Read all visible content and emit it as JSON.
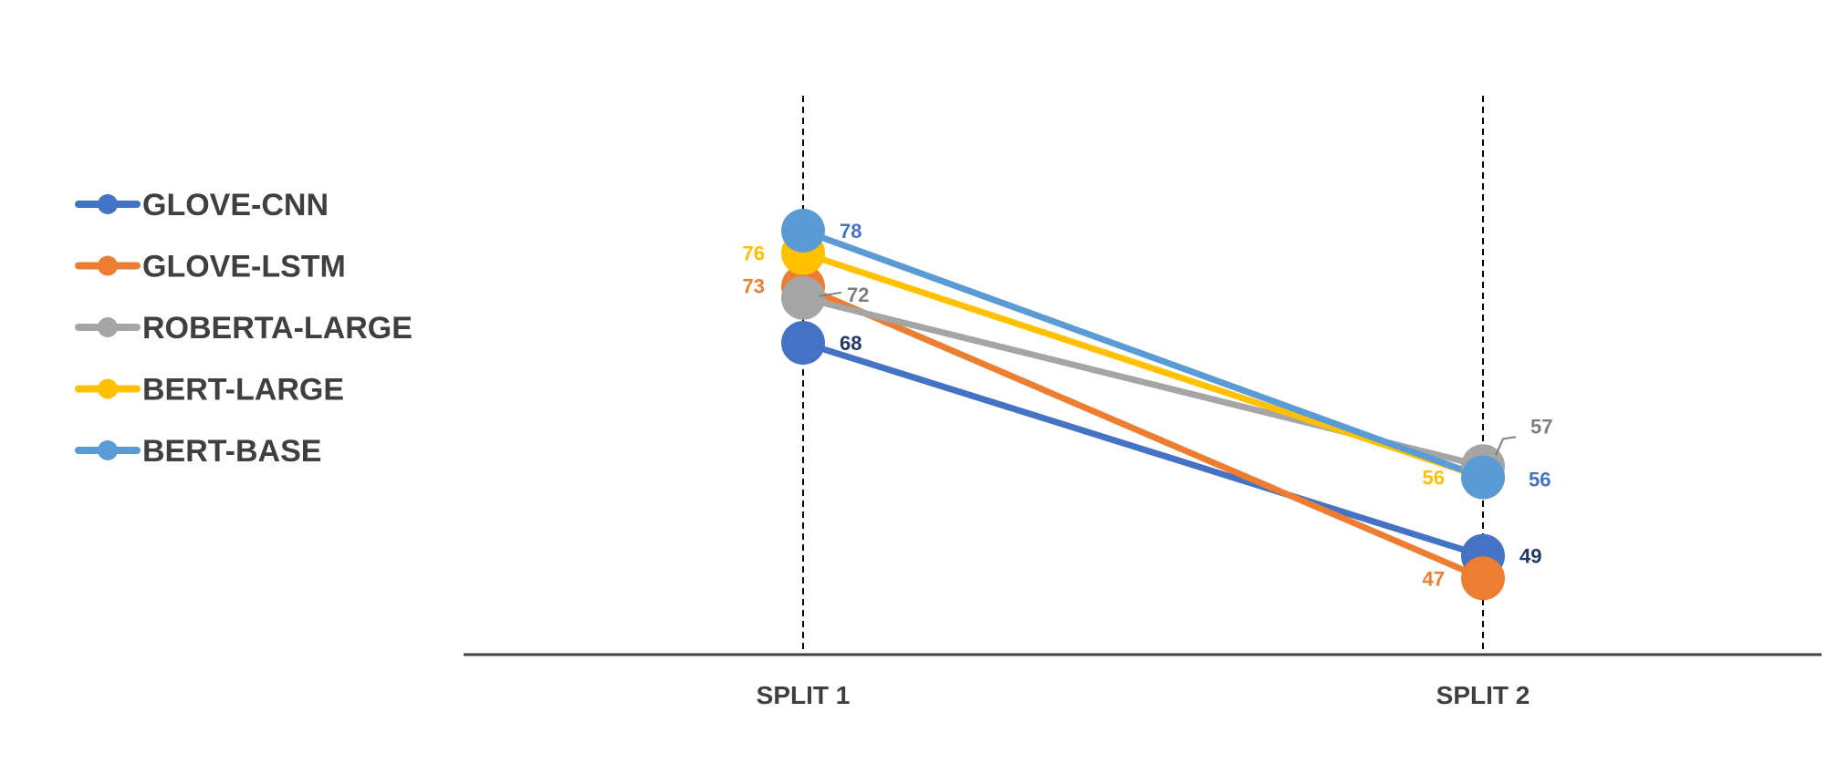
{
  "chart_data": {
    "type": "line",
    "title": "",
    "xlabel": "",
    "ylabel": "",
    "categories": [
      "SPLIT 1",
      "SPLIT 2"
    ],
    "legend_position": "left",
    "grid": false,
    "series": [
      {
        "name": "GLOVE-CNN",
        "values": [
          68,
          49
        ],
        "color": "#4472C4",
        "label_color": "#1F3864"
      },
      {
        "name": "GLOVE-LSTM",
        "values": [
          73,
          47
        ],
        "color": "#ED7D31",
        "label_color": "#ED7D31"
      },
      {
        "name": "ROBERTA-LARGE",
        "values": [
          72,
          57
        ],
        "color": "#A5A5A5",
        "label_color": "#7F7F7F"
      },
      {
        "name": "BERT-LARGE",
        "values": [
          76,
          56
        ],
        "color": "#FFC000",
        "label_color": "#FFC000"
      },
      {
        "name": "BERT-BASE",
        "values": [
          78,
          56
        ],
        "color": "#5B9BD5",
        "label_color": "#4472C4"
      }
    ]
  }
}
